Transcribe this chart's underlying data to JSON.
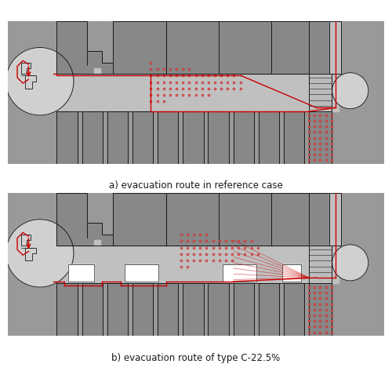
{
  "fig_width": 5.0,
  "fig_height": 4.87,
  "dpi": 100,
  "bg_color": "#ffffff",
  "panel_a_label": "a) evacuation route in reference case",
  "panel_b_label": "b) evacuation route of type C-22.5%",
  "label_fontsize": 8.5,
  "gray_bg": "#999999",
  "gray_room": "#888888",
  "gray_corridor": "#c0c0c0",
  "gray_circle": "#d0d0d0",
  "gray_wall_dark": "#555555",
  "gray_stair": "#bbbbbb",
  "red_color": "#cc0000",
  "red_dot": "#d06060",
  "white": "#ffffff",
  "black": "#1a1a1a",
  "border_color": "#333333"
}
